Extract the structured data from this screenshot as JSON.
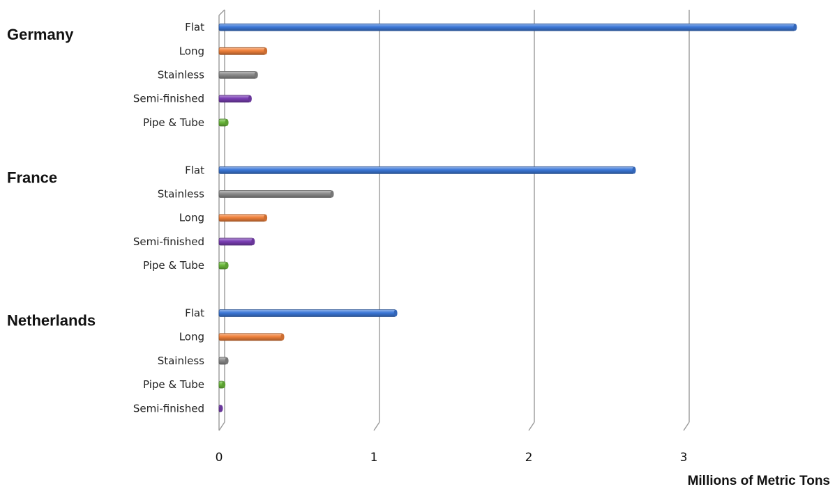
{
  "chart_data": {
    "type": "bar",
    "orientation": "horizontal",
    "xlabel": "Millions of Metric Tons",
    "xlim": [
      0,
      4
    ],
    "xticks": [
      "0",
      "1",
      "2",
      "3",
      "4"
    ],
    "grid": true,
    "legend": "none",
    "groups": [
      {
        "name": "Germany",
        "bars": [
          {
            "category": "Flat",
            "value": 3.72
          },
          {
            "category": "Long",
            "value": 0.3
          },
          {
            "category": "Stainless",
            "value": 0.24
          },
          {
            "category": "Semi-finished",
            "value": 0.2
          },
          {
            "category": "Pipe & Tube",
            "value": 0.05
          }
        ]
      },
      {
        "name": "France",
        "bars": [
          {
            "category": "Flat",
            "value": 2.68
          },
          {
            "category": "Stainless",
            "value": 0.73
          },
          {
            "category": "Long",
            "value": 0.3
          },
          {
            "category": "Semi-finished",
            "value": 0.22
          },
          {
            "category": "Pipe & Tube",
            "value": 0.05
          }
        ]
      },
      {
        "name": "Netherlands",
        "bars": [
          {
            "category": "Flat",
            "value": 1.14
          },
          {
            "category": "Long",
            "value": 0.41
          },
          {
            "category": "Stainless",
            "value": 0.05
          },
          {
            "category": "Pipe & Tube",
            "value": 0.03
          },
          {
            "category": "Semi-finished",
            "value": 0.01
          }
        ]
      }
    ],
    "colors": {
      "Flat": "#3c78d8",
      "Long": "#f0813b",
      "Stainless": "#8c8c8c",
      "Semi-finished": "#7b3fb5",
      "Pipe & Tube": "#6cbb3c"
    }
  }
}
